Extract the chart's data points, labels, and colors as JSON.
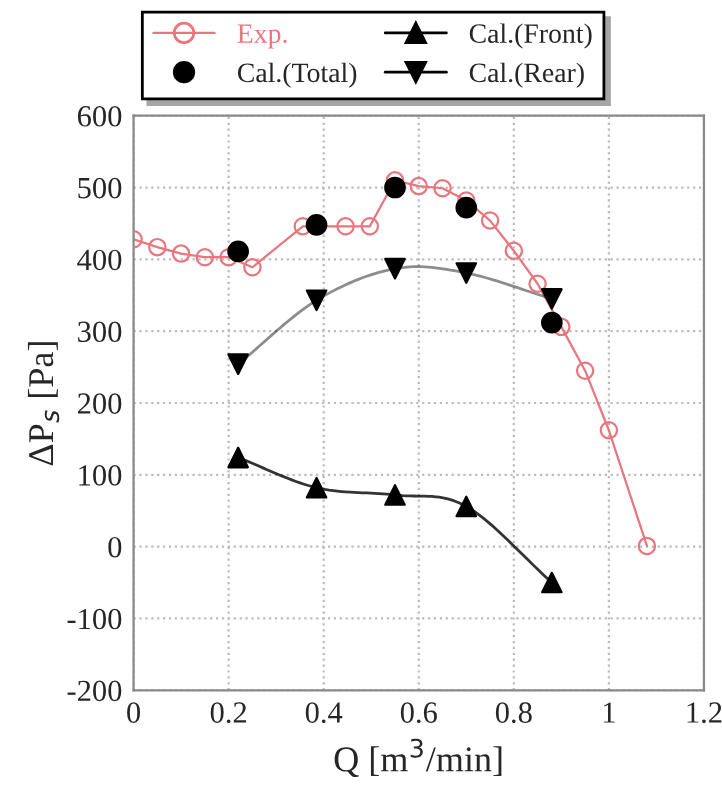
{
  "chart_data": {
    "type": "line",
    "xlabel": "Q [m$^{3}$/min]",
    "ylabel": "ΔP$_{s}$ [Pa]",
    "xlim": [
      0,
      1.2
    ],
    "xticks": [
      0,
      0.2,
      0.4,
      0.6,
      0.8,
      1,
      1.2
    ],
    "ylim": [
      -200,
      600
    ],
    "yticks": [
      -200,
      -100,
      0,
      100,
      200,
      300,
      400,
      500,
      600
    ],
    "grid": true,
    "legend": "top",
    "series": [
      {
        "name": "Exp.",
        "marker": "circle",
        "color": "#e8767e",
        "x": [
          0,
          0.05,
          0.1,
          0.15,
          0.2,
          0.25,
          0.356,
          0.446,
          0.497,
          0.55,
          0.6,
          0.65,
          0.7,
          0.75,
          0.8,
          0.85,
          0.9,
          0.95,
          1.0,
          1.08
        ],
        "values": [
          428,
          417,
          408,
          403,
          403,
          389,
          446,
          446,
          446,
          510,
          502,
          499,
          482,
          454,
          412,
          366,
          306,
          245,
          162,
          1
        ]
      },
      {
        "name": "Cal.(Front)",
        "marker": "triangle",
        "color": "#000000",
        "x": [
          0.22,
          0.385,
          0.55,
          0.7,
          0.88
        ],
        "values": [
          124,
          82,
          72,
          56,
          -50
        ]
      },
      {
        "name": "Cal.(Total)",
        "type": "scatter",
        "marker": "circle",
        "color": "#000000",
        "x": [
          0.22,
          0.385,
          0.55,
          0.7,
          0.88
        ],
        "values": [
          411,
          448,
          500,
          472,
          312
        ]
      },
      {
        "name": "Cal.(Rear)",
        "marker": "triangle_down",
        "color": "#000000",
        "x": [
          0.22,
          0.385,
          0.55,
          0.7,
          0.88
        ],
        "values": [
          254,
          343,
          387,
          381,
          345
        ]
      }
    ]
  }
}
